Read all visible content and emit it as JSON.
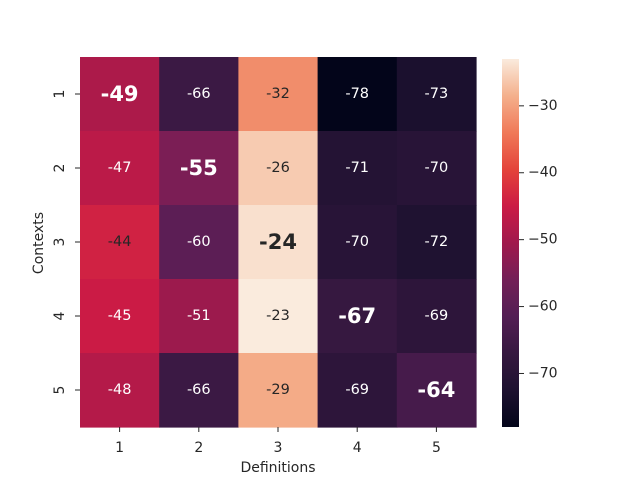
{
  "chart_data": {
    "type": "heatmap",
    "xlabel": "Definitions",
    "ylabel": "Contexts",
    "x_categories": [
      "1",
      "2",
      "3",
      "4",
      "5"
    ],
    "y_categories": [
      "1",
      "2",
      "3",
      "4",
      "5"
    ],
    "values": [
      [
        -49,
        -66,
        -32,
        -78,
        -73
      ],
      [
        -47,
        -55,
        -26,
        -71,
        -70
      ],
      [
        -44,
        -60,
        -24,
        -70,
        -72
      ],
      [
        -45,
        -51,
        -23,
        -67,
        -69
      ],
      [
        -48,
        -66,
        -29,
        -69,
        -64
      ]
    ],
    "cell_labels": [
      [
        "-49",
        "-66",
        "-32",
        "-78",
        "-73"
      ],
      [
        "-47",
        "-55",
        "-26",
        "-71",
        "-70"
      ],
      [
        "-44",
        "-60",
        "-24",
        "-70",
        "-72"
      ],
      [
        "-45",
        "-51",
        "-23",
        "-67",
        "-69"
      ],
      [
        "-48",
        "-66",
        "-29",
        "-69",
        "-64"
      ]
    ],
    "highlighted": "diagonal",
    "colorbar": {
      "range": [
        -78,
        -23
      ],
      "ticks": [
        -30,
        -40,
        -50,
        -60,
        -70
      ],
      "tick_labels": [
        "−30",
        "−40",
        "−50",
        "−60",
        "−70"
      ],
      "colormap": "rocket"
    },
    "grid": false,
    "legend": "colorbar-right"
  }
}
